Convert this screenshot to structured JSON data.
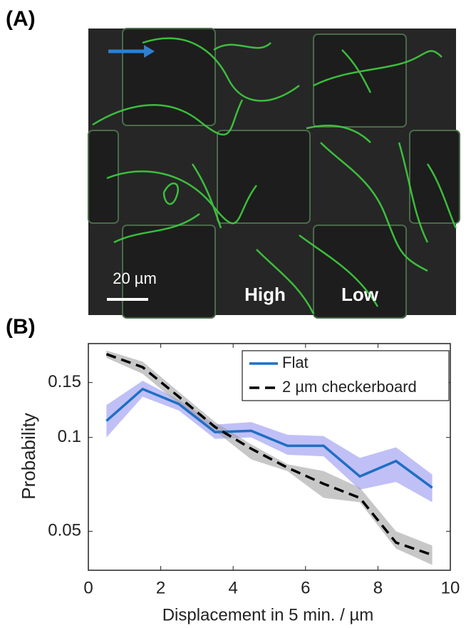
{
  "panel_a": {
    "label": "(A)",
    "scale_bar": "20 µm",
    "annotations": [
      "High",
      "Low"
    ]
  },
  "panel_b": {
    "label": "(B)"
  },
  "chart_data": {
    "type": "line",
    "xlabel": "Displacement in 5 min. / µm",
    "ylabel": "Probability",
    "x": [
      0.5,
      1.5,
      2.5,
      3.5,
      4.5,
      5.5,
      6.5,
      7.5,
      8.5,
      9.5
    ],
    "series": [
      {
        "name": "Flat",
        "color": "#1f6fc4",
        "band_color": "#8c8cf0",
        "dash": false,
        "values": [
          0.113,
          0.143,
          0.128,
          0.104,
          0.105,
          0.094,
          0.094,
          0.075,
          0.084,
          0.069
        ],
        "lower": [
          0.1,
          0.135,
          0.122,
          0.099,
          0.1,
          0.088,
          0.087,
          0.068,
          0.072,
          0.062
        ],
        "upper": [
          0.127,
          0.152,
          0.132,
          0.11,
          0.112,
          0.102,
          0.101,
          0.086,
          0.093,
          0.076
        ]
      },
      {
        "name": "2 µm checkerboard",
        "color": "#000000",
        "band_color": "#999999",
        "dash": true,
        "values": [
          0.185,
          0.168,
          0.135,
          0.108,
          0.092,
          0.08,
          0.071,
          0.064,
          0.046,
          0.042
        ],
        "lower": [
          0.18,
          0.16,
          0.128,
          0.105,
          0.085,
          0.078,
          0.064,
          0.062,
          0.044,
          0.039
        ],
        "upper": [
          0.19,
          0.175,
          0.14,
          0.112,
          0.095,
          0.082,
          0.078,
          0.069,
          0.05,
          0.045
        ]
      }
    ],
    "xlim": [
      0,
      10
    ],
    "xticks": [
      0,
      2,
      4,
      6,
      8,
      10
    ],
    "ylim": [
      0.0375,
      0.2
    ],
    "yticks": [
      0.05,
      0.1,
      0.15
    ],
    "yscale": "log",
    "legend": "upper right",
    "grid": false
  }
}
